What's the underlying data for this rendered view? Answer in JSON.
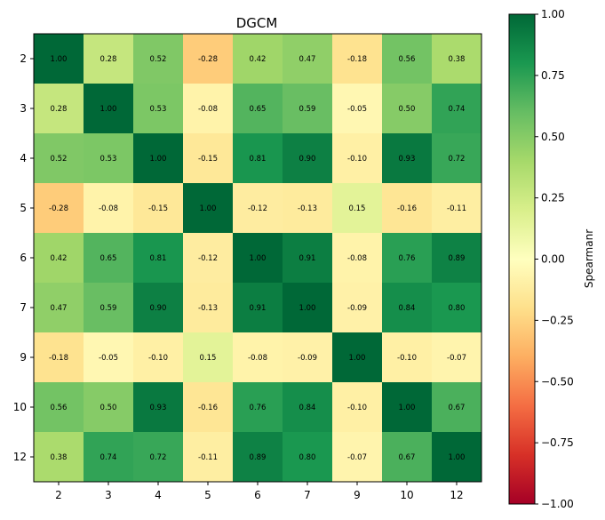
{
  "chart_data": {
    "type": "heatmap",
    "title": "DGCM",
    "labels": [
      "2",
      "3",
      "4",
      "5",
      "6",
      "7",
      "9",
      "10",
      "12"
    ],
    "values": [
      [
        1.0,
        0.28,
        0.52,
        -0.28,
        0.42,
        0.47,
        -0.18,
        0.56,
        0.38
      ],
      [
        0.28,
        1.0,
        0.53,
        -0.08,
        0.65,
        0.59,
        -0.05,
        0.5,
        0.74
      ],
      [
        0.52,
        0.53,
        1.0,
        -0.15,
        0.81,
        0.9,
        -0.1,
        0.93,
        0.72
      ],
      [
        -0.28,
        -0.08,
        -0.15,
        1.0,
        -0.12,
        -0.13,
        0.15,
        -0.16,
        -0.11
      ],
      [
        0.42,
        0.65,
        0.81,
        -0.12,
        1.0,
        0.91,
        -0.08,
        0.76,
        0.89
      ],
      [
        0.47,
        0.59,
        0.9,
        -0.13,
        0.91,
        1.0,
        -0.09,
        0.84,
        0.8
      ],
      [
        -0.18,
        -0.05,
        -0.1,
        0.15,
        -0.08,
        -0.09,
        1.0,
        -0.1,
        -0.07
      ],
      [
        0.56,
        0.5,
        0.93,
        -0.16,
        0.76,
        0.84,
        -0.1,
        1.0,
        0.67
      ],
      [
        0.38,
        0.74,
        0.72,
        -0.11,
        0.89,
        0.8,
        -0.07,
        0.67,
        1.0
      ]
    ],
    "colorbar": {
      "label": "Spearmanr",
      "range": [
        -1.0,
        1.0
      ],
      "ticks": [
        1.0,
        0.75,
        0.5,
        0.25,
        0.0,
        -0.25,
        -0.5,
        -0.75,
        -1.0
      ],
      "tick_labels": [
        "1.00",
        "0.75",
        "0.50",
        "0.25",
        "0.00",
        "−0.25",
        "−0.50",
        "−0.75",
        "−1.00"
      ],
      "colormap": "RdYlGn",
      "colormap_stops": [
        "#a50026",
        "#d73027",
        "#f46d43",
        "#fdae61",
        "#fee08b",
        "#ffffbf",
        "#d9ef8b",
        "#a6d96a",
        "#66bd63",
        "#1a9850",
        "#006837"
      ]
    }
  }
}
